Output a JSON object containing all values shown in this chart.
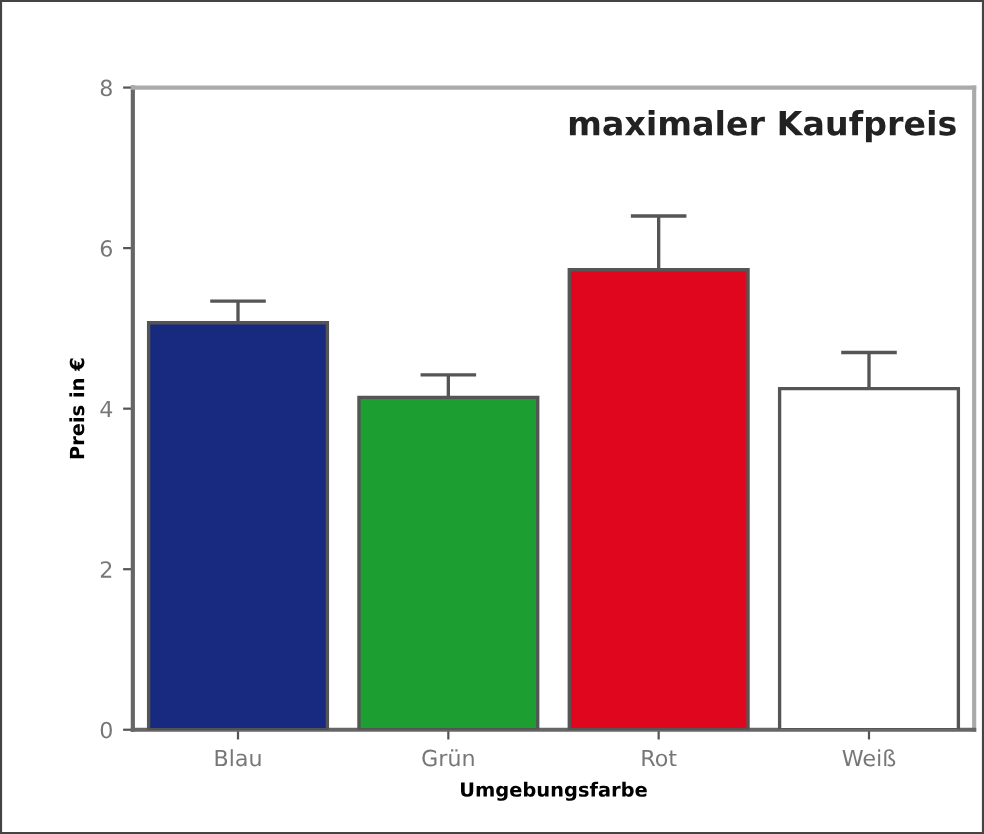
{
  "chart_data": {
    "type": "bar",
    "title": "maximaler Kaufpreis",
    "xlabel": "Umgebungsfarbe",
    "ylabel": "Preis in €",
    "categories": [
      "Blau",
      "Grün",
      "Rot",
      "Weiß"
    ],
    "values": [
      5.07,
      4.14,
      5.73,
      4.25
    ],
    "errors": [
      0.27,
      0.28,
      0.67,
      0.45
    ],
    "colors": [
      "#182a80",
      "#1d9e30",
      "#e0061e",
      "#ffffff"
    ],
    "ylim": [
      0,
      8
    ],
    "yticks": [
      0,
      2,
      4,
      6,
      8
    ],
    "grid": false,
    "legend": false
  }
}
